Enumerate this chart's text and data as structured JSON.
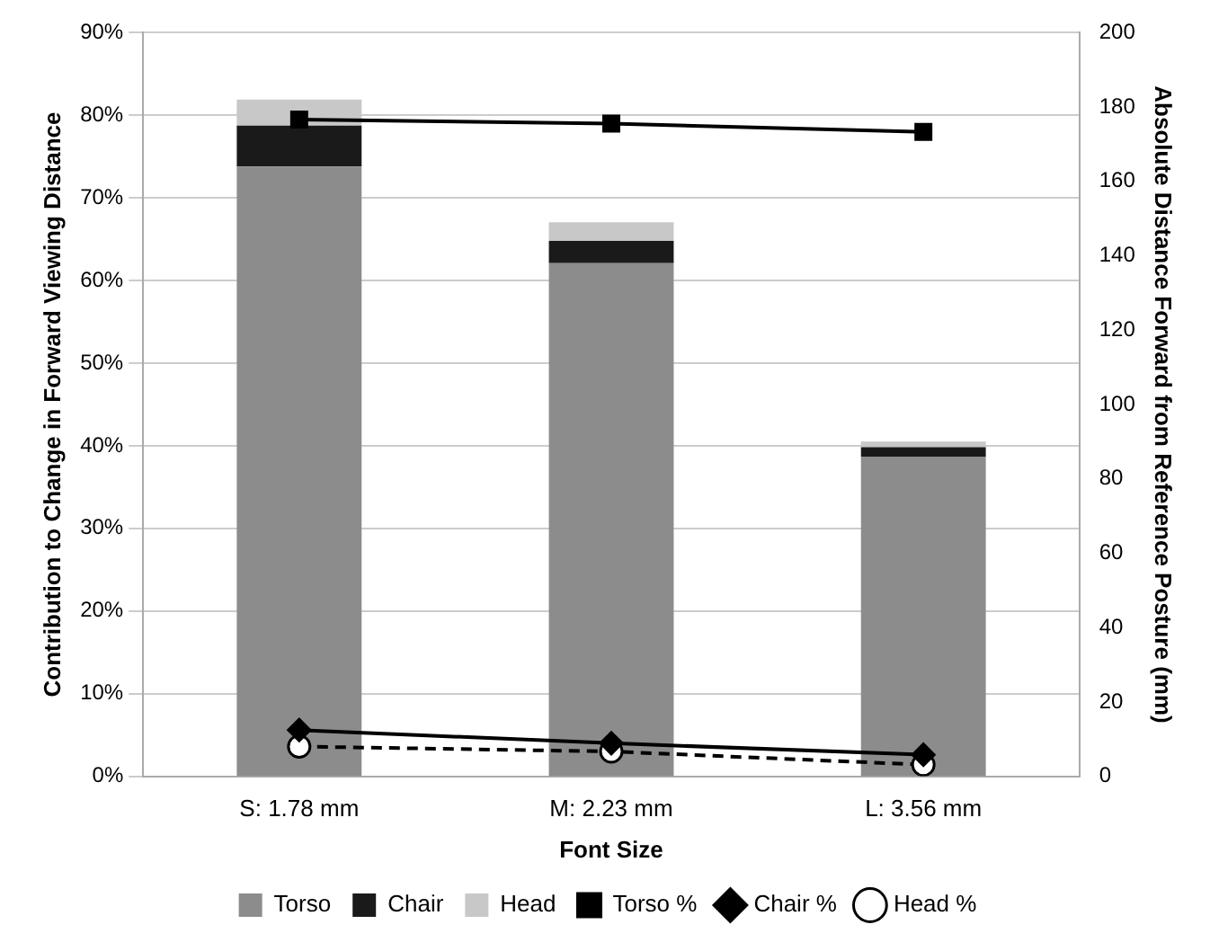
{
  "chart_data": {
    "type": "bar",
    "stacked": true,
    "xlabel": "Font Size",
    "ylabel": "Contribution to Change in Forward Viewing Distance",
    "y2label": "Absolute Distance Forward from Reference Posture (mm)",
    "categories": [
      "S: 1.78 mm",
      "M: 2.23 mm",
      "L: 3.56 mm"
    ],
    "series": [
      {
        "name": "Torso",
        "axis": "y2",
        "color": "#8c8c8c",
        "values": [
          164,
          138,
          86
        ]
      },
      {
        "name": "Chair",
        "axis": "y2",
        "color": "#1a1a1a",
        "values": [
          11,
          6,
          2.5
        ]
      },
      {
        "name": "Head",
        "axis": "y2",
        "color": "#c8c8c8",
        "values": [
          7,
          5,
          1.5
        ]
      },
      {
        "name": "Torso %",
        "type": "line",
        "color": "#000000",
        "marker": "square",
        "line_style": "solid",
        "values": [
          79.5,
          79,
          78
        ]
      },
      {
        "name": "Chair %",
        "type": "line",
        "color": "#000000",
        "marker": "diamond",
        "line_style": "solid",
        "values": [
          5.6,
          4,
          2.6
        ]
      },
      {
        "name": "Head %",
        "type": "line",
        "color": "#000000",
        "marker": "circle",
        "line_style": "dashed",
        "values": [
          3.6,
          3,
          1.4
        ]
      }
    ],
    "ylim": [
      0,
      90
    ],
    "yticks": [
      {
        "value": 0,
        "label": "0%"
      },
      {
        "value": 10,
        "label": "10%"
      },
      {
        "value": 20,
        "label": "20%"
      },
      {
        "value": 30,
        "label": "30%"
      },
      {
        "value": 40,
        "label": "40%"
      },
      {
        "value": 50,
        "label": "50%"
      },
      {
        "value": 60,
        "label": "60%"
      },
      {
        "value": 70,
        "label": "70%"
      },
      {
        "value": 80,
        "label": "80%"
      },
      {
        "value": 90,
        "label": "90%"
      }
    ],
    "y2lim": [
      0,
      200
    ],
    "y2ticks": [
      0,
      20,
      40,
      60,
      80,
      100,
      120,
      140,
      160,
      180,
      200
    ],
    "grid": "y",
    "legend": "bottom"
  }
}
